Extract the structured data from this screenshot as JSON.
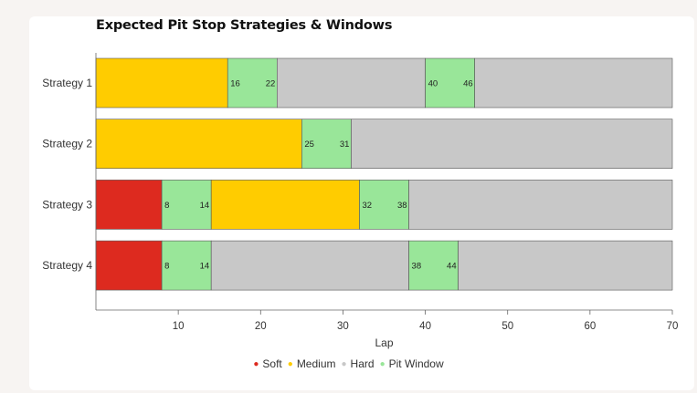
{
  "colors": {
    "soft": "#dd2a1f",
    "medium": "#ffcc00",
    "hard": "#c8c8c8",
    "pit_window": "#99e699"
  },
  "chart_data": {
    "type": "bar",
    "orientation": "horizontal-stacked-timeline",
    "title": "Expected Pit Stop Strategies & Windows",
    "xlabel": "Lap",
    "ylabel": "",
    "xlim": [
      0,
      70
    ],
    "xticks": [
      10,
      20,
      30,
      40,
      50,
      60,
      70
    ],
    "grid": false,
    "legend_position": "bottom",
    "legend": [
      {
        "key": "soft",
        "label": "Soft"
      },
      {
        "key": "medium",
        "label": "Medium"
      },
      {
        "key": "hard",
        "label": "Hard"
      },
      {
        "key": "pit_window",
        "label": "Pit Window"
      }
    ],
    "categories": [
      "Strategy 1",
      "Strategy 2",
      "Strategy 3",
      "Strategy 4"
    ],
    "strategies": [
      {
        "name": "Strategy 1",
        "segments": [
          {
            "type": "medium",
            "start": 0,
            "end": 16
          },
          {
            "type": "pit_window",
            "start": 16,
            "end": 22
          },
          {
            "type": "hard",
            "start": 22,
            "end": 40
          },
          {
            "type": "pit_window",
            "start": 40,
            "end": 46
          },
          {
            "type": "hard",
            "start": 46,
            "end": 70
          }
        ],
        "windows": [
          [
            16,
            22
          ],
          [
            40,
            46
          ]
        ]
      },
      {
        "name": "Strategy 2",
        "segments": [
          {
            "type": "medium",
            "start": 0,
            "end": 25
          },
          {
            "type": "pit_window",
            "start": 25,
            "end": 31
          },
          {
            "type": "hard",
            "start": 31,
            "end": 70
          }
        ],
        "windows": [
          [
            25,
            31
          ]
        ]
      },
      {
        "name": "Strategy 3",
        "segments": [
          {
            "type": "soft",
            "start": 0,
            "end": 8
          },
          {
            "type": "pit_window",
            "start": 8,
            "end": 14
          },
          {
            "type": "medium",
            "start": 14,
            "end": 32
          },
          {
            "type": "pit_window",
            "start": 32,
            "end": 38
          },
          {
            "type": "hard",
            "start": 38,
            "end": 70
          }
        ],
        "windows": [
          [
            8,
            14
          ],
          [
            32,
            38
          ]
        ]
      },
      {
        "name": "Strategy 4",
        "segments": [
          {
            "type": "soft",
            "start": 0,
            "end": 8
          },
          {
            "type": "pit_window",
            "start": 8,
            "end": 14
          },
          {
            "type": "hard",
            "start": 14,
            "end": 38
          },
          {
            "type": "pit_window",
            "start": 38,
            "end": 44
          },
          {
            "type": "hard",
            "start": 44,
            "end": 70
          }
        ],
        "windows": [
          [
            8,
            14
          ],
          [
            38,
            44
          ]
        ]
      }
    ]
  }
}
